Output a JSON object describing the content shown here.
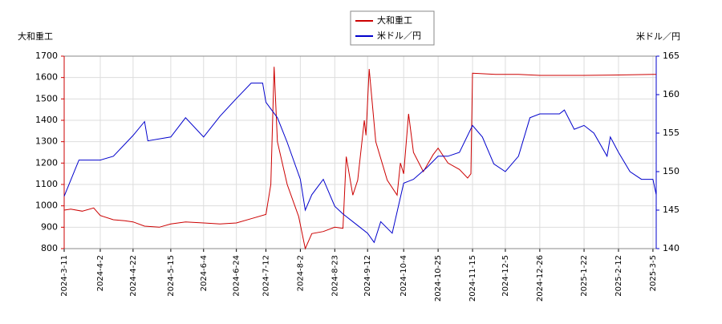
{
  "chart_data": {
    "type": "line",
    "legend": "top",
    "grid": true,
    "ylabel": "大和重工",
    "y2label": "米ドル／円",
    "xlim": [
      "2024-3-11",
      "2025-3-7"
    ],
    "xticks": [
      "2024-3-11",
      "2024-4-2",
      "2024-4-22",
      "2024-5-15",
      "2024-6-4",
      "2024-6-24",
      "2024-7-12",
      "2024-8-2",
      "2024-8-23",
      "2024-9-12",
      "2024-10-4",
      "2024-10-25",
      "2024-11-15",
      "2024-12-5",
      "2024-12-26",
      "2025-1-22",
      "2025-2-12",
      "2025-3-5"
    ],
    "ylim": [
      800,
      1700
    ],
    "yticks": [
      800,
      900,
      1000,
      1100,
      1200,
      1300,
      1400,
      1500,
      1600,
      1700
    ],
    "y2lim": [
      140,
      165
    ],
    "y2ticks": [
      140,
      145,
      150,
      155,
      160,
      165
    ],
    "series": [
      {
        "name": "大和重工",
        "color": "#cc0000",
        "x": [
          "2024-3-11",
          "2024-3-15",
          "2024-3-22",
          "2024-3-29",
          "2024-4-2",
          "2024-4-10",
          "2024-4-17",
          "2024-4-22",
          "2024-4-29",
          "2024-5-8",
          "2024-5-15",
          "2024-5-24",
          "2024-6-4",
          "2024-6-14",
          "2024-6-24",
          "2024-7-3",
          "2024-7-12",
          "2024-7-15",
          "2024-7-17",
          "2024-7-19",
          "2024-7-25",
          "2024-8-1",
          "2024-8-5",
          "2024-8-9",
          "2024-8-16",
          "2024-8-23",
          "2024-8-28",
          "2024-8-30",
          "2024-9-3",
          "2024-9-6",
          "2024-9-10",
          "2024-9-11",
          "2024-9-13",
          "2024-9-17",
          "2024-9-24",
          "2024-9-30",
          "2024-10-2",
          "2024-10-4",
          "2024-10-7",
          "2024-10-10",
          "2024-10-16",
          "2024-10-22",
          "2024-10-25",
          "2024-10-31",
          "2024-11-7",
          "2024-11-12",
          "2024-11-14",
          "2024-11-15",
          "2024-11-29",
          "2024-12-13",
          "2024-12-26",
          "2025-1-10",
          "2025-1-22",
          "2025-2-12",
          "2025-3-5",
          "2025-3-7"
        ],
        "values": [
          980,
          985,
          975,
          990,
          955,
          935,
          930,
          925,
          905,
          900,
          915,
          925,
          920,
          915,
          920,
          940,
          960,
          1100,
          1650,
          1300,
          1100,
          950,
          800,
          870,
          880,
          900,
          895,
          1230,
          1050,
          1120,
          1400,
          1330,
          1640,
          1300,
          1120,
          1050,
          1200,
          1150,
          1430,
          1250,
          1160,
          1240,
          1270,
          1200,
          1170,
          1130,
          1150,
          1620,
          1615,
          1615,
          1610,
          1610,
          1610,
          1612,
          1615,
          1615
        ]
      },
      {
        "name": "米ドル／円",
        "color": "#0000cc",
        "axis": "y2",
        "x": [
          "2024-3-11",
          "2024-3-20",
          "2024-4-2",
          "2024-4-10",
          "2024-4-22",
          "2024-4-29",
          "2024-5-1",
          "2024-5-15",
          "2024-5-24",
          "2024-6-4",
          "2024-6-14",
          "2024-6-24",
          "2024-7-3",
          "2024-7-10",
          "2024-7-12",
          "2024-7-19",
          "2024-7-25",
          "2024-8-2",
          "2024-8-5",
          "2024-8-9",
          "2024-8-16",
          "2024-8-23",
          "2024-8-28",
          "2024-9-6",
          "2024-9-12",
          "2024-9-16",
          "2024-9-20",
          "2024-9-27",
          "2024-10-4",
          "2024-10-10",
          "2024-10-18",
          "2024-10-25",
          "2024-10-31",
          "2024-11-7",
          "2024-11-15",
          "2024-11-21",
          "2024-11-28",
          "2024-12-5",
          "2024-12-13",
          "2024-12-20",
          "2024-12-26",
          "2025-1-7",
          "2025-1-10",
          "2025-1-16",
          "2025-1-22",
          "2025-1-28",
          "2025-2-5",
          "2025-2-7",
          "2025-2-12",
          "2025-2-19",
          "2025-2-26",
          "2025-3-5",
          "2025-3-7"
        ],
        "values": [
          146.8,
          151.5,
          151.5,
          152,
          154.7,
          156.5,
          154,
          154.5,
          157,
          154.5,
          157.2,
          159.5,
          161.5,
          161.5,
          159,
          157,
          153.8,
          149,
          145,
          147,
          149,
          145.5,
          144.5,
          143,
          142,
          140.8,
          143.5,
          142,
          148.5,
          149,
          150.5,
          152,
          152,
          152.5,
          156,
          154.5,
          151,
          150,
          152,
          157,
          157.5,
          157.5,
          158,
          155.5,
          156,
          155,
          152,
          154.5,
          152.5,
          150,
          149,
          149,
          147
        ]
      }
    ]
  }
}
